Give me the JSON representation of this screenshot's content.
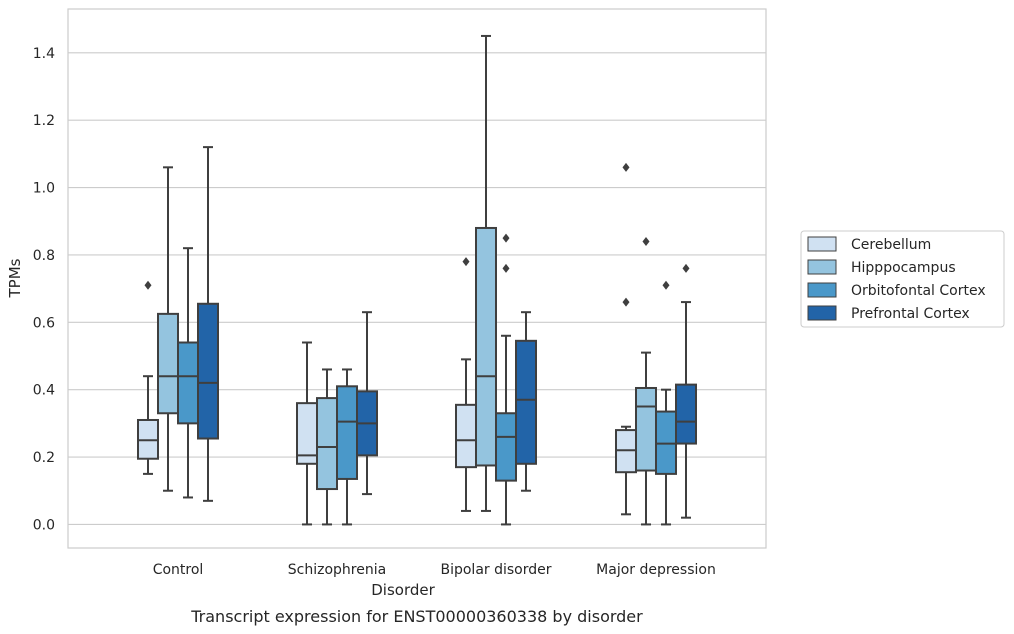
{
  "chart_data": {
    "type": "box",
    "title": "",
    "caption": "Transcript expression for ENST00000360338 by disorder",
    "xlabel": "Disorder",
    "ylabel": "TPMs",
    "ylim": [
      -0.07,
      1.53
    ],
    "yticks": [
      0.0,
      0.2,
      0.4,
      0.6,
      0.8,
      1.0,
      1.2,
      1.4
    ],
    "ytick_labels": [
      "0.0",
      "0.2",
      "0.4",
      "0.6",
      "0.8",
      "1.0",
      "1.2",
      "1.4"
    ],
    "grid": "horizontal",
    "legend_position": "right",
    "categories": [
      "Control",
      "Schizophrenia",
      "Bipolar disorder",
      "Major depression"
    ],
    "series": [
      {
        "name": "Cerebellum",
        "color": "#d0e1f2",
        "boxes": [
          {
            "whislo": 0.15,
            "q1": 0.195,
            "med": 0.25,
            "q3": 0.31,
            "whishi": 0.44,
            "fliers": [
              0.71
            ]
          },
          {
            "whislo": 0.0,
            "q1": 0.18,
            "med": 0.205,
            "q3": 0.36,
            "whishi": 0.54,
            "fliers": []
          },
          {
            "whislo": 0.04,
            "q1": 0.17,
            "med": 0.25,
            "q3": 0.355,
            "whishi": 0.49,
            "fliers": [
              0.78
            ]
          },
          {
            "whislo": 0.03,
            "q1": 0.155,
            "med": 0.22,
            "q3": 0.28,
            "whishi": 0.29,
            "fliers": [
              0.66,
              1.06
            ]
          }
        ]
      },
      {
        "name": "Hipppocampus",
        "color": "#94c4df",
        "boxes": [
          {
            "whislo": 0.1,
            "q1": 0.33,
            "med": 0.44,
            "q3": 0.625,
            "whishi": 1.06,
            "fliers": []
          },
          {
            "whislo": 0.0,
            "q1": 0.105,
            "med": 0.23,
            "q3": 0.375,
            "whishi": 0.46,
            "fliers": []
          },
          {
            "whislo": 0.04,
            "q1": 0.175,
            "med": 0.44,
            "q3": 0.88,
            "whishi": 1.45,
            "fliers": []
          },
          {
            "whislo": 0.0,
            "q1": 0.16,
            "med": 0.35,
            "q3": 0.405,
            "whishi": 0.51,
            "fliers": [
              0.84
            ]
          }
        ]
      },
      {
        "name": "Orbitofontal Cortex",
        "color": "#4a98c9",
        "boxes": [
          {
            "whislo": 0.08,
            "q1": 0.3,
            "med": 0.44,
            "q3": 0.54,
            "whishi": 0.82,
            "fliers": []
          },
          {
            "whislo": 0.0,
            "q1": 0.135,
            "med": 0.305,
            "q3": 0.41,
            "whishi": 0.46,
            "fliers": []
          },
          {
            "whislo": 0.0,
            "q1": 0.13,
            "med": 0.26,
            "q3": 0.33,
            "whishi": 0.56,
            "fliers": [
              0.76,
              0.85
            ]
          },
          {
            "whislo": 0.0,
            "q1": 0.15,
            "med": 0.24,
            "q3": 0.335,
            "whishi": 0.4,
            "fliers": [
              0.71
            ]
          }
        ]
      },
      {
        "name": "Prefrontal Cortex",
        "color": "#2264a8",
        "boxes": [
          {
            "whislo": 0.07,
            "q1": 0.255,
            "med": 0.42,
            "q3": 0.655,
            "whishi": 1.12,
            "fliers": []
          },
          {
            "whislo": 0.09,
            "q1": 0.205,
            "med": 0.3,
            "q3": 0.395,
            "whishi": 0.63,
            "fliers": []
          },
          {
            "whislo": 0.1,
            "q1": 0.18,
            "med": 0.37,
            "q3": 0.545,
            "whishi": 0.63,
            "fliers": []
          },
          {
            "whislo": 0.02,
            "q1": 0.24,
            "med": 0.305,
            "q3": 0.415,
            "whishi": 0.66,
            "fliers": [
              0.76
            ]
          }
        ]
      }
    ]
  }
}
